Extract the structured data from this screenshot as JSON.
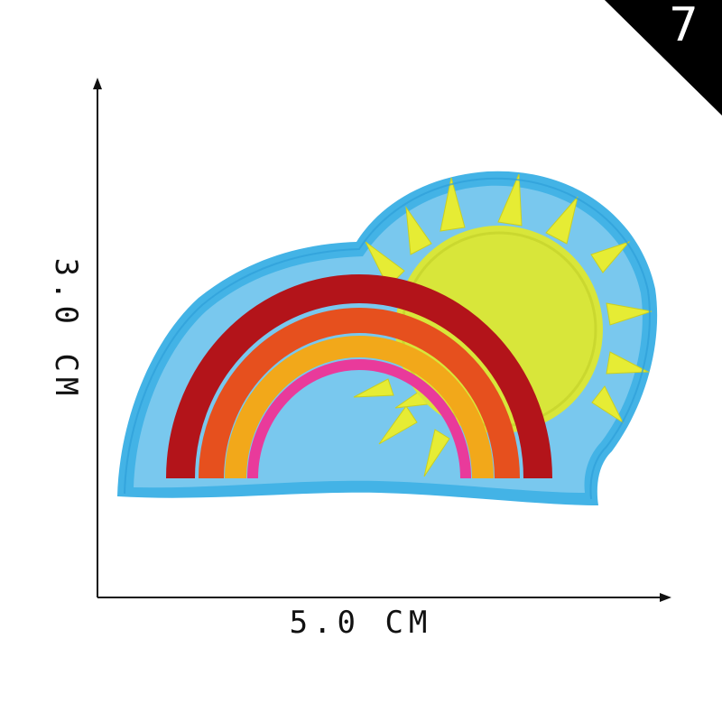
{
  "product": {
    "number": "7",
    "width_label": "5.0 CM",
    "height_label": "3.0 CM"
  },
  "colors": {
    "background": "#ffffff",
    "corner_badge": "#000000",
    "patch_border": "#43b3e6",
    "patch_fill": "#79c8ee",
    "sun": "#d8e63a",
    "sun_rays": "#e6ec34",
    "rainbow": [
      "#b3141a",
      "#e6501e",
      "#f2a81a",
      "#e93a9b"
    ],
    "axis": "#111111"
  }
}
